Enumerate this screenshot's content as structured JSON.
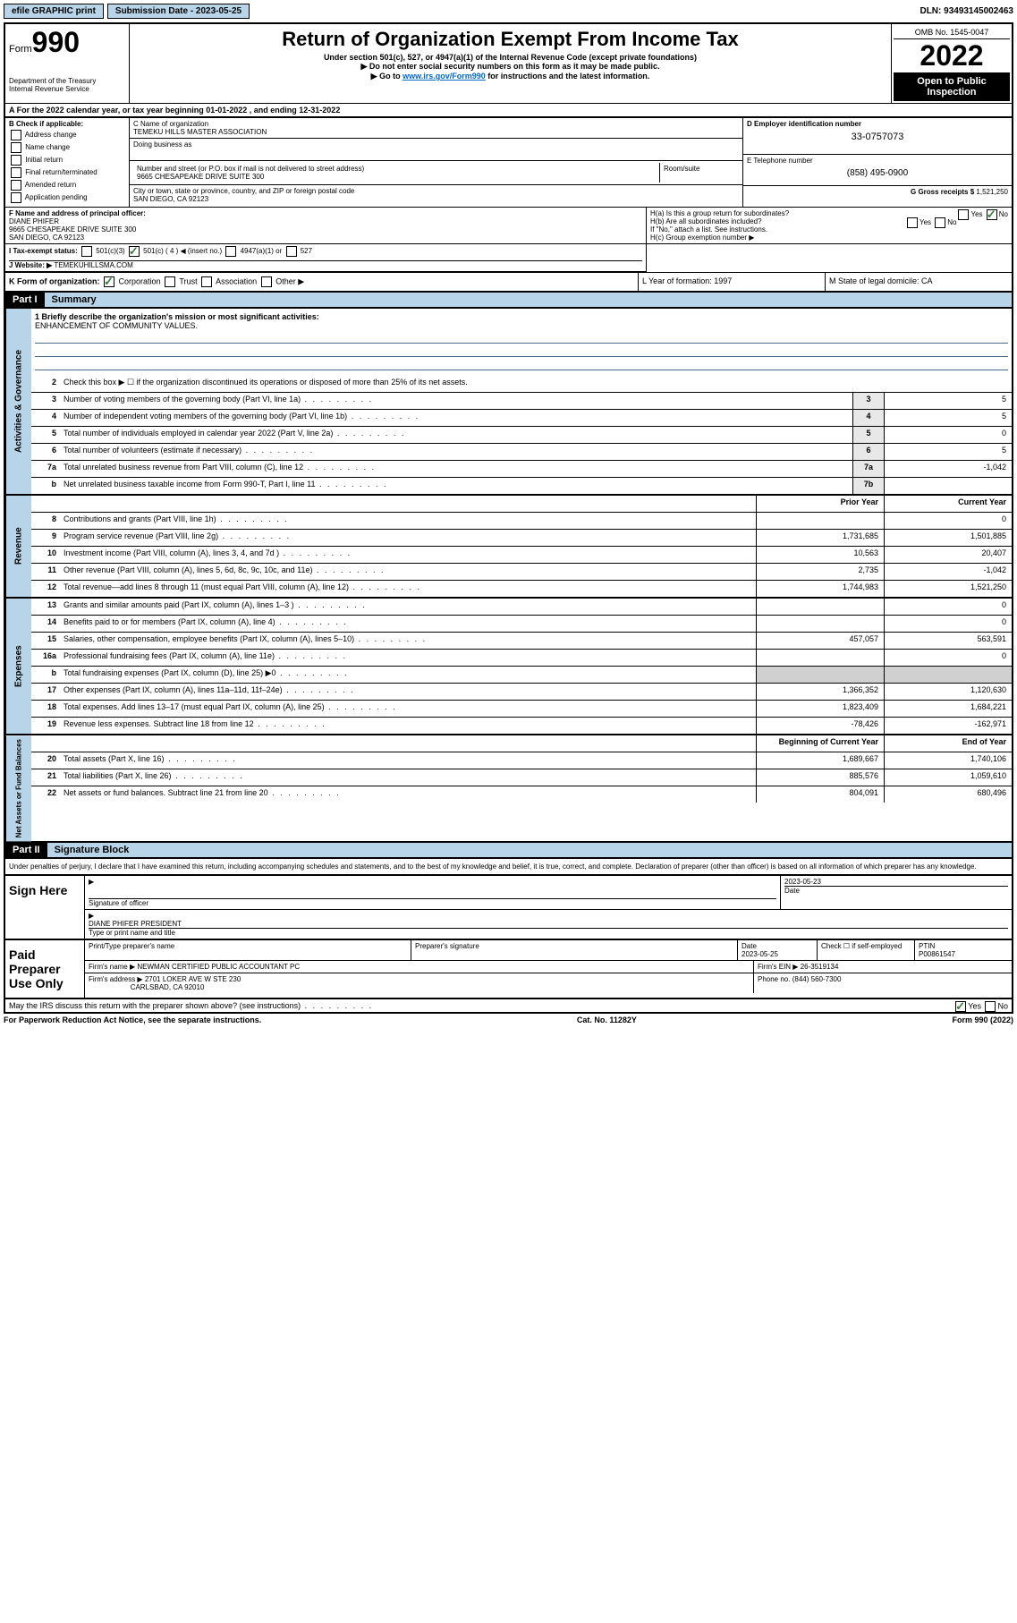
{
  "topbar": {
    "efile_label": "efile GRAPHIC print",
    "submission_label": "Submission Date - 2023-05-25",
    "dln": "DLN: 93493145002463"
  },
  "header": {
    "form_prefix": "Form",
    "form_number": "990",
    "dept": "Department of the Treasury",
    "irs": "Internal Revenue Service",
    "title": "Return of Organization Exempt From Income Tax",
    "subtitle": "Under section 501(c), 527, or 4947(a)(1) of the Internal Revenue Code (except private foundations)",
    "note1": "▶ Do not enter social security numbers on this form as it may be made public.",
    "note2_pre": "▶ Go to ",
    "note2_link": "www.irs.gov/Form990",
    "note2_post": " for instructions and the latest information.",
    "omb": "OMB No. 1545-0047",
    "year": "2022",
    "open": "Open to Public Inspection"
  },
  "row_a": "A For the 2022 calendar year, or tax year beginning 01-01-2022   , and ending 12-31-2022",
  "section_b": {
    "label": "B Check if applicable:",
    "items": [
      "Address change",
      "Name change",
      "Initial return",
      "Final return/terminated",
      "Amended return",
      "Application pending"
    ]
  },
  "section_c": {
    "name_label": "C Name of organization",
    "name": "TEMEKU HILLS MASTER ASSOCIATION",
    "dba_label": "Doing business as",
    "addr_label": "Number and street (or P.O. box if mail is not delivered to street address)",
    "room_label": "Room/suite",
    "addr": "9665 CHESAPEAKE DRIVE SUITE 300",
    "city_label": "City or town, state or province, country, and ZIP or foreign postal code",
    "city": "SAN DIEGO, CA  92123"
  },
  "section_d": {
    "label": "D Employer identification number",
    "value": "33-0757073"
  },
  "section_e": {
    "label": "E Telephone number",
    "value": "(858) 495-0900"
  },
  "section_g": {
    "label": "G Gross receipts $",
    "value": "1,521,250"
  },
  "section_f": {
    "label": "F Name and address of principal officer:",
    "name": "DIANE PHIFER",
    "addr1": "9665 CHESAPEAKE DRIVE SUITE 300",
    "addr2": "SAN DIEGO, CA  92123"
  },
  "section_h": {
    "ha": "H(a)  Is this a group return for subordinates?",
    "hb": "H(b)  Are all subordinates included?",
    "hb_note": "If \"No,\" attach a list. See instructions.",
    "hc": "H(c)  Group exemption number ▶"
  },
  "row_i": {
    "label": "I  Tax-exempt status:",
    "opts": [
      "501(c)(3)",
      "501(c) ( 4 ) ◀ (insert no.)",
      "4947(a)(1) or",
      "527"
    ]
  },
  "row_j": {
    "label": "J  Website: ▶",
    "value": "TEMEKUHILLSMA.COM"
  },
  "row_k": {
    "label": "K Form of organization:",
    "opts": [
      "Corporation",
      "Trust",
      "Association",
      "Other ▶"
    ]
  },
  "row_l": "L Year of formation: 1997",
  "row_m": "M State of legal domicile: CA",
  "part1": {
    "header": "Part I",
    "title": "Summary",
    "mission_label": "1  Briefly describe the organization's mission or most significant activities:",
    "mission": "ENHANCEMENT OF COMMUNITY VALUES."
  },
  "governance": {
    "label": "Activities & Governance",
    "line2": "Check this box ▶ ☐  if the organization discontinued its operations or disposed of more than 25% of its net assets.",
    "lines": [
      {
        "n": "3",
        "d": "Number of voting members of the governing body (Part VI, line 1a)",
        "b": "3",
        "v": "5"
      },
      {
        "n": "4",
        "d": "Number of independent voting members of the governing body (Part VI, line 1b)",
        "b": "4",
        "v": "5"
      },
      {
        "n": "5",
        "d": "Total number of individuals employed in calendar year 2022 (Part V, line 2a)",
        "b": "5",
        "v": "0"
      },
      {
        "n": "6",
        "d": "Total number of volunteers (estimate if necessary)",
        "b": "6",
        "v": "5"
      },
      {
        "n": "7a",
        "d": "Total unrelated business revenue from Part VIII, column (C), line 12",
        "b": "7a",
        "v": "-1,042"
      },
      {
        "n": "b",
        "d": "Net unrelated business taxable income from Form 990-T, Part I, line 11",
        "b": "7b",
        "v": ""
      }
    ]
  },
  "revenue": {
    "label": "Revenue",
    "col1": "Prior Year",
    "col2": "Current Year",
    "lines": [
      {
        "n": "8",
        "d": "Contributions and grants (Part VIII, line 1h)",
        "v1": "",
        "v2": "0"
      },
      {
        "n": "9",
        "d": "Program service revenue (Part VIII, line 2g)",
        "v1": "1,731,685",
        "v2": "1,501,885"
      },
      {
        "n": "10",
        "d": "Investment income (Part VIII, column (A), lines 3, 4, and 7d )",
        "v1": "10,563",
        "v2": "20,407"
      },
      {
        "n": "11",
        "d": "Other revenue (Part VIII, column (A), lines 5, 6d, 8c, 9c, 10c, and 11e)",
        "v1": "2,735",
        "v2": "-1,042"
      },
      {
        "n": "12",
        "d": "Total revenue—add lines 8 through 11 (must equal Part VIII, column (A), line 12)",
        "v1": "1,744,983",
        "v2": "1,521,250"
      }
    ]
  },
  "expenses": {
    "label": "Expenses",
    "lines": [
      {
        "n": "13",
        "d": "Grants and similar amounts paid (Part IX, column (A), lines 1–3 )",
        "v1": "",
        "v2": "0"
      },
      {
        "n": "14",
        "d": "Benefits paid to or for members (Part IX, column (A), line 4)",
        "v1": "",
        "v2": "0"
      },
      {
        "n": "15",
        "d": "Salaries, other compensation, employee benefits (Part IX, column (A), lines 5–10)",
        "v1": "457,057",
        "v2": "563,591"
      },
      {
        "n": "16a",
        "d": "Professional fundraising fees (Part IX, column (A), line 11e)",
        "v1": "",
        "v2": "0"
      },
      {
        "n": "b",
        "d": "Total fundraising expenses (Part IX, column (D), line 25) ▶0",
        "v1": "shade",
        "v2": "shade"
      },
      {
        "n": "17",
        "d": "Other expenses (Part IX, column (A), lines 11a–11d, 11f–24e)",
        "v1": "1,366,352",
        "v2": "1,120,630"
      },
      {
        "n": "18",
        "d": "Total expenses. Add lines 13–17 (must equal Part IX, column (A), line 25)",
        "v1": "1,823,409",
        "v2": "1,684,221"
      },
      {
        "n": "19",
        "d": "Revenue less expenses. Subtract line 18 from line 12",
        "v1": "-78,426",
        "v2": "-162,971"
      }
    ]
  },
  "netassets": {
    "label": "Net Assets or Fund Balances",
    "col1": "Beginning of Current Year",
    "col2": "End of Year",
    "lines": [
      {
        "n": "20",
        "d": "Total assets (Part X, line 16)",
        "v1": "1,689,667",
        "v2": "1,740,106"
      },
      {
        "n": "21",
        "d": "Total liabilities (Part X, line 26)",
        "v1": "885,576",
        "v2": "1,059,610"
      },
      {
        "n": "22",
        "d": "Net assets or fund balances. Subtract line 21 from line 20",
        "v1": "804,091",
        "v2": "680,496"
      }
    ]
  },
  "part2": {
    "header": "Part II",
    "title": "Signature Block",
    "penalties": "Under penalties of perjury, I declare that I have examined this return, including accompanying schedules and statements, and to the best of my knowledge and belief, it is true, correct, and complete. Declaration of preparer (other than officer) is based on all information of which preparer has any knowledge."
  },
  "sign": {
    "label": "Sign Here",
    "sig_label": "Signature of officer",
    "date_label": "Date",
    "date": "2023-05-23",
    "name": "DIANE PHIFER  PRESIDENT",
    "name_label": "Type or print name and title"
  },
  "paid": {
    "label": "Paid Preparer Use Only",
    "h1": "Print/Type preparer's name",
    "h2": "Preparer's signature",
    "h3": "Date",
    "h3v": "2023-05-25",
    "h4": "Check ☐ if self-employed",
    "h5": "PTIN",
    "h5v": "P00861547",
    "firm_label": "Firm's name    ▶",
    "firm": "NEWMAN CERTIFIED PUBLIC ACCOUNTANT PC",
    "ein_label": "Firm's EIN ▶",
    "ein": "26-3519134",
    "addr_label": "Firm's address ▶",
    "addr1": "2701 LOKER AVE W STE 230",
    "addr2": "CARLSBAD, CA  92010",
    "phone_label": "Phone no.",
    "phone": "(844) 560-7300"
  },
  "discuss": "May the IRS discuss this return with the preparer shown above? (see instructions)",
  "footer": {
    "left": "For Paperwork Reduction Act Notice, see the separate instructions.",
    "mid": "Cat. No. 11282Y",
    "right": "Form 990 (2022)"
  }
}
